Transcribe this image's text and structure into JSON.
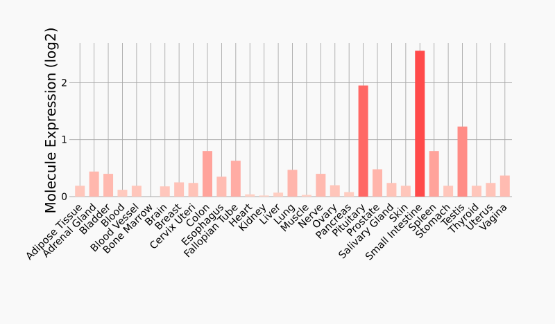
{
  "chart_data": {
    "type": "bar",
    "title": "",
    "xlabel": "",
    "ylabel": "Molecule Expression (log2)",
    "ylim": [
      0,
      2.7
    ],
    "yticks": [
      0,
      1,
      2
    ],
    "grid": true,
    "legend": "none",
    "categories": [
      "Adipose Tissue",
      "Adrenal Gland",
      "Bladder",
      "Blood",
      "Blood Vessel",
      "Bone Marrow",
      "Brain",
      "Breast",
      "Cervix Uteri",
      "Colon",
      "Esophagus",
      "Fallopian Tube",
      "Heart",
      "Kidney",
      "Liver",
      "Lung",
      "Muscle",
      "Nerve",
      "Ovary",
      "Pancreas",
      "Pituitary",
      "Prostate",
      "Salivary Gland",
      "Skin",
      "Small Intestine",
      "Spleen",
      "Stomach",
      "Testis",
      "Thyroid",
      "Uterus",
      "Vagina"
    ],
    "values": [
      0.19,
      0.44,
      0.4,
      0.12,
      0.19,
      0.0,
      0.18,
      0.25,
      0.24,
      0.8,
      0.35,
      0.63,
      0.04,
      0.02,
      0.07,
      0.47,
      0.03,
      0.4,
      0.2,
      0.08,
      1.95,
      0.48,
      0.24,
      0.19,
      2.56,
      0.8,
      0.19,
      1.23,
      0.19,
      0.24,
      0.37
    ],
    "colors": {
      "background": "#f9f9f9",
      "grid": "#a9a9a9",
      "bar_low": "#ffd3c7",
      "bar_high": "#ff4a4a"
    }
  }
}
